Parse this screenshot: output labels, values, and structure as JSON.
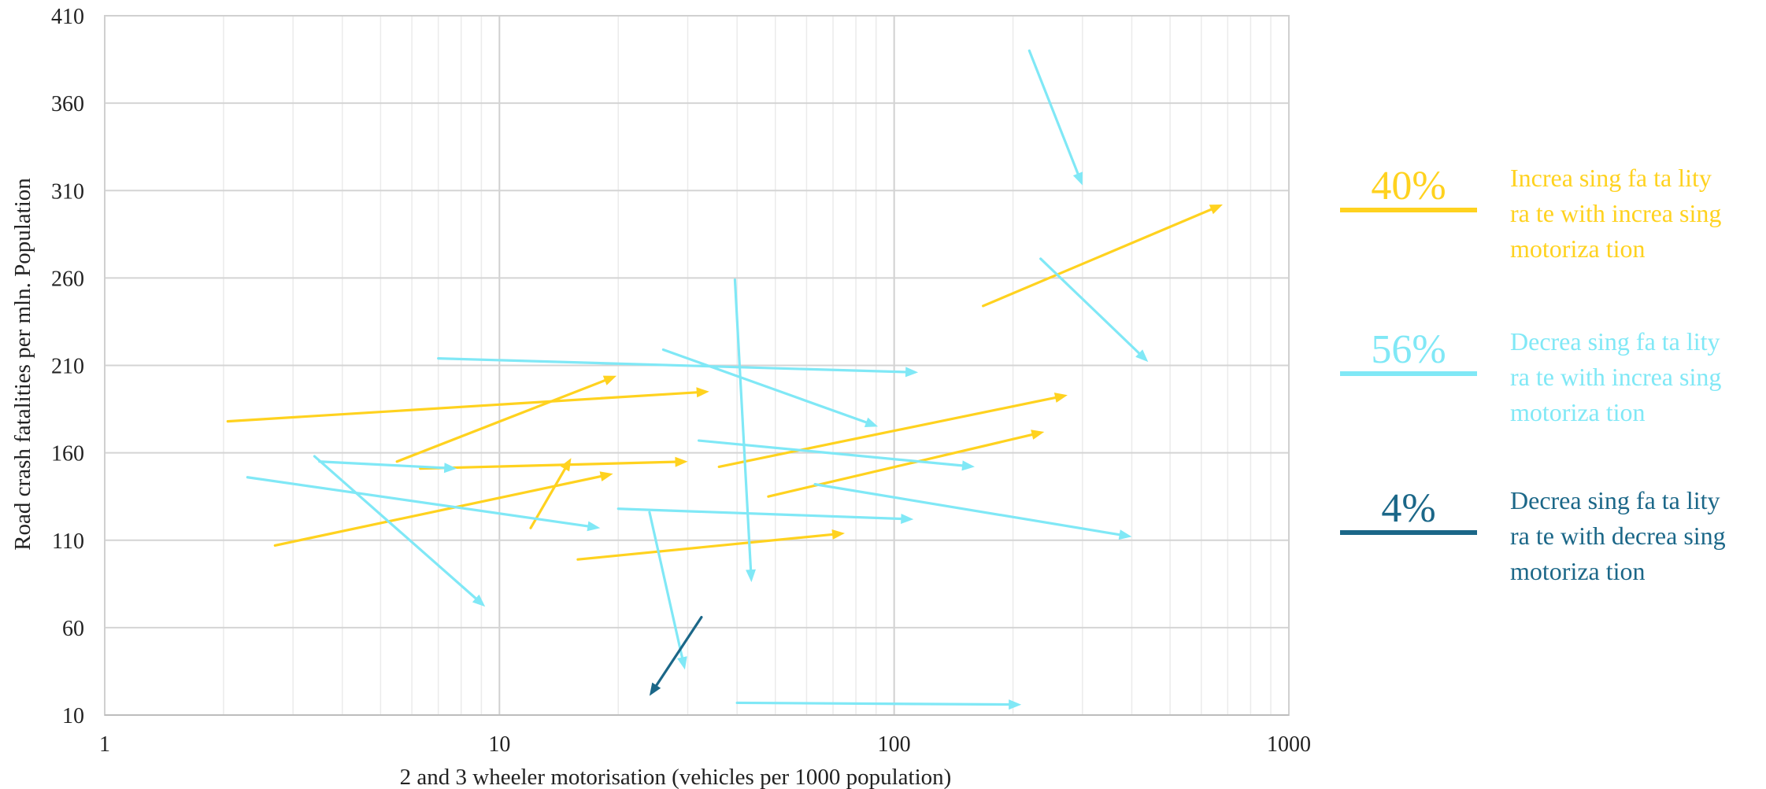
{
  "chart_data": {
    "type": "scatter",
    "subtype": "arrows",
    "title": "",
    "xlabel": "2 and 3 wheeler motorisation (vehicles per 1000 population)",
    "ylabel": "Road crash fatalities per mln. Population",
    "x_scale": "log",
    "xlim": [
      1,
      1000
    ],
    "ylim": [
      10,
      410
    ],
    "x_ticks": [
      "1",
      "10",
      "100",
      "1000"
    ],
    "y_ticks": [
      "10",
      "60",
      "110",
      "160",
      "210",
      "260",
      "310",
      "360",
      "410"
    ],
    "grid": true,
    "legend_position": "right",
    "colors": {
      "increasing": "#FFD21F",
      "decreasing_increasing": "#80E8F6",
      "decreasing_decreasing": "#1B6788"
    },
    "legend": [
      {
        "key": "increasing",
        "pct": "40%",
        "lines": [
          "Increa sing  fa ta lity",
          "ra te  with increa sing",
          "motoriza tion"
        ]
      },
      {
        "key": "decreasing_increasing",
        "pct": "56%",
        "lines": [
          "Decrea sing  fa ta lity",
          "ra te  with increa sing",
          "motoriza tion"
        ]
      },
      {
        "key": "decreasing_decreasing",
        "pct": "4%",
        "lines": [
          "Decrea sing  fa ta lity",
          "ra te  with decrea sing",
          "motoriza tion"
        ]
      }
    ],
    "series": [
      {
        "key": "increasing",
        "arrows": [
          {
            "from": [
              2.05,
              178
            ],
            "to": [
              34,
              195
            ]
          },
          {
            "from": [
              5.5,
              155
            ],
            "to": [
              19.8,
              204
            ]
          },
          {
            "from": [
              6.3,
              151
            ],
            "to": [
              30,
              155
            ]
          },
          {
            "from": [
              2.7,
              107
            ],
            "to": [
              19.4,
              148
            ]
          },
          {
            "from": [
              12,
              117
            ],
            "to": [
              15.2,
              157
            ]
          },
          {
            "from": [
              15.8,
              99
            ],
            "to": [
              75,
              114
            ]
          },
          {
            "from": [
              36,
              152
            ],
            "to": [
              275,
              193
            ]
          },
          {
            "from": [
              48,
              135
            ],
            "to": [
              240,
              172
            ]
          },
          {
            "from": [
              168,
              244
            ],
            "to": [
              680,
              302
            ]
          }
        ]
      },
      {
        "key": "decreasing_increasing",
        "arrows": [
          {
            "from": [
              7,
              214
            ],
            "to": [
              115,
              206
            ]
          },
          {
            "from": [
              26,
              219
            ],
            "to": [
              91,
              175
            ]
          },
          {
            "from": [
              3.4,
              158
            ],
            "to": [
              9.2,
              72
            ]
          },
          {
            "from": [
              3.5,
              155
            ],
            "to": [
              7.8,
              151
            ]
          },
          {
            "from": [
              2.3,
              146
            ],
            "to": [
              18,
              117
            ]
          },
          {
            "from": [
              20,
              128
            ],
            "to": [
              112,
              122
            ]
          },
          {
            "from": [
              24,
              126
            ],
            "to": [
              29.5,
              36
            ]
          },
          {
            "from": [
              32,
              167
            ],
            "to": [
              160,
              152
            ]
          },
          {
            "from": [
              39.5,
              259
            ],
            "to": [
              43.5,
              86
            ]
          },
          {
            "from": [
              40,
              17
            ],
            "to": [
              210,
              16
            ]
          },
          {
            "from": [
              63,
              142
            ],
            "to": [
              400,
              112
            ]
          },
          {
            "from": [
              220,
              390
            ],
            "to": [
              300,
              313
            ]
          },
          {
            "from": [
              235,
              271
            ],
            "to": [
              440,
              212
            ]
          }
        ]
      },
      {
        "key": "decreasing_decreasing",
        "arrows": [
          {
            "from": [
              32.5,
              66
            ],
            "to": [
              24,
              21
            ]
          }
        ]
      }
    ]
  }
}
